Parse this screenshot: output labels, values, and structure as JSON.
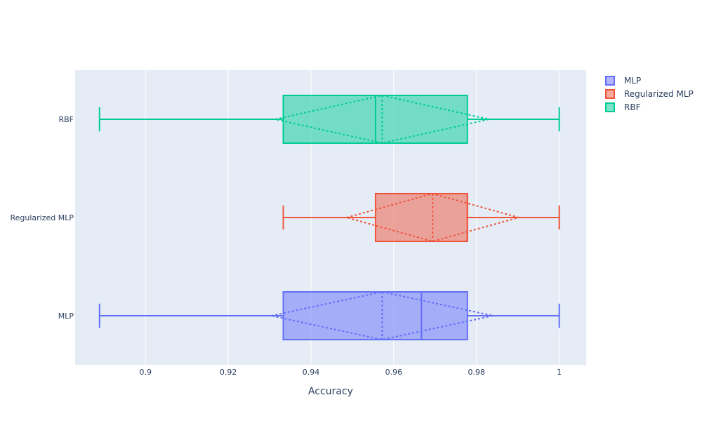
{
  "chart_data": {
    "type": "box",
    "orientation": "horizontal",
    "xlabel": "Accuracy",
    "ylabel": "",
    "xlim": [
      0.883,
      1.0065
    ],
    "xticks": [
      0.9,
      0.92,
      0.94,
      0.96,
      0.98,
      1
    ],
    "xtick_labels": [
      "0.9",
      "0.92",
      "0.94",
      "0.96",
      "0.98",
      "1"
    ],
    "categories": [
      "MLP",
      "Regularized MLP",
      "RBF"
    ],
    "grid": true,
    "legend_position": "top-right",
    "plot_background": "#e5ecf6",
    "series": [
      {
        "name": "MLP",
        "color": "#636efa",
        "min": 0.8889,
        "q1": 0.9333,
        "median": 0.9667,
        "q3": 0.9778,
        "max": 1.0,
        "mean": 0.9572,
        "sd": 0.0268
      },
      {
        "name": "Regularized MLP",
        "color": "#ef553b",
        "min": 0.9333,
        "q1": 0.9556,
        "median": 0.9778,
        "q3": 0.9778,
        "max": 1.0,
        "mean": 0.9694,
        "sd": 0.0208
      },
      {
        "name": "RBF",
        "color": "#00cc96",
        "min": 0.8889,
        "q1": 0.9333,
        "median": 0.9556,
        "q3": 0.9778,
        "max": 1.0,
        "mean": 0.9572,
        "sd": 0.0258
      }
    ]
  }
}
